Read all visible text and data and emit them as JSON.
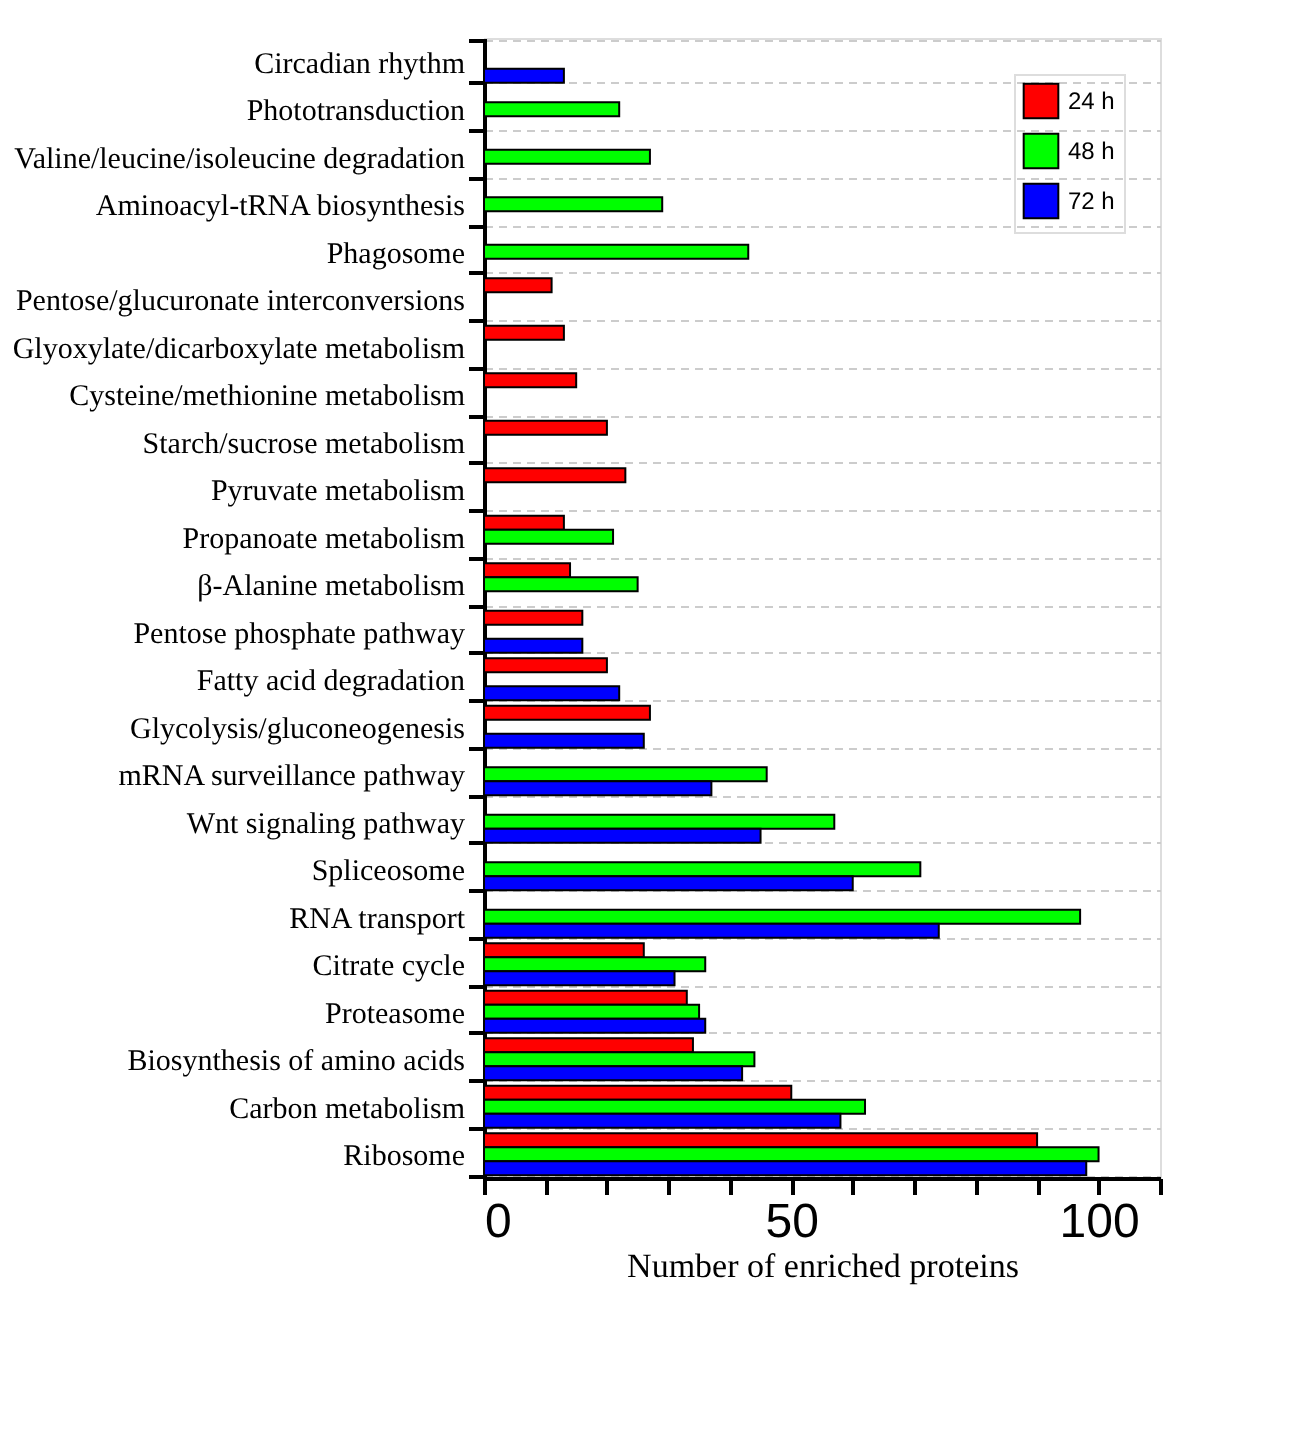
{
  "chart_data": {
    "type": "bar",
    "orientation": "horizontal",
    "xlabel": "Number of enriched proteins",
    "categories": [
      "Circadian rhythm",
      "Phototransduction",
      "Valine/leucine/isoleucine degradation",
      "Aminoacyl-tRNA biosynthesis",
      "Phagosome",
      "Pentose/glucuronate interconversions",
      "Glyoxylate/dicarboxylate metabolism",
      "Cysteine/methionine metabolism",
      "Starch/sucrose metabolism",
      "Pyruvate metabolism",
      "Propanoate metabolism",
      "β-Alanine metabolism",
      "Pentose phosphate pathway",
      "Fatty acid degradation",
      "Glycolysis/gluconeogenesis",
      "mRNA surveillance pathway",
      "Wnt signaling pathway",
      "Spliceosome",
      "RNA transport",
      "Citrate cycle",
      "Proteasome",
      "Biosynthesis of amino acids",
      "Carbon metabolism",
      "Ribosome"
    ],
    "series": [
      {
        "name": "24 h",
        "color": "#ff0000",
        "values": [
          null,
          null,
          null,
          null,
          null,
          11,
          13,
          15,
          20,
          23,
          13,
          14,
          16,
          20,
          27,
          null,
          null,
          null,
          null,
          26,
          33,
          34,
          50,
          90
        ]
      },
      {
        "name": "48 h",
        "color": "#00ff00",
        "values": [
          null,
          22,
          27,
          29,
          43,
          null,
          null,
          null,
          null,
          null,
          21,
          25,
          null,
          null,
          null,
          46,
          57,
          71,
          97,
          36,
          35,
          44,
          62,
          100
        ]
      },
      {
        "name": "72 h",
        "color": "#0000ff",
        "values": [
          13,
          null,
          null,
          null,
          null,
          null,
          null,
          null,
          null,
          null,
          null,
          null,
          16,
          22,
          26,
          37,
          45,
          60,
          74,
          31,
          36,
          42,
          58,
          98
        ]
      }
    ],
    "xlim": [
      0,
      110
    ],
    "xticks": [
      0,
      {
        "value": 10,
        "label": null
      },
      {
        "value": 20,
        "label": null
      },
      {
        "value": 30,
        "label": null
      },
      {
        "value": 40,
        "label": null
      },
      50,
      {
        "value": 60,
        "label": null
      },
      {
        "value": 70,
        "label": null
      },
      {
        "value": 80,
        "label": null
      },
      {
        "value": 90,
        "label": null
      },
      100,
      {
        "value": 110,
        "label": null
      }
    ],
    "grid": "y",
    "legend": "top right"
  }
}
